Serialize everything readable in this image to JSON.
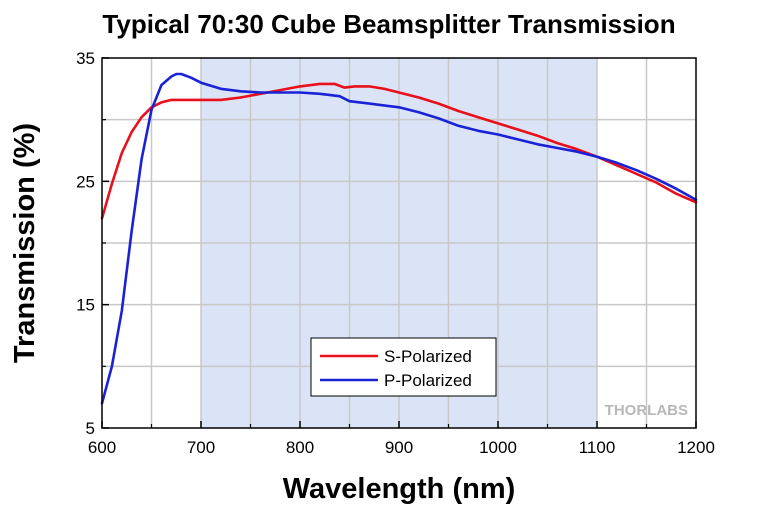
{
  "chart_data": {
    "type": "line",
    "title": "Typical 70:30 Cube Beamsplitter Transmission",
    "xlabel": "Wavelength (nm)",
    "ylabel": "Transmission (%)",
    "xlim": [
      600,
      1200
    ],
    "ylim": [
      5,
      35
    ],
    "xticks": [
      600,
      700,
      800,
      900,
      1000,
      1100,
      1200
    ],
    "yticks": [
      5,
      15,
      25,
      35
    ],
    "grid": true,
    "shaded_region": {
      "x_start": 700,
      "x_end": 1100,
      "color": "#dbe4f6"
    },
    "legend_position": "lower-center",
    "watermark": "THORLABS",
    "series": [
      {
        "name": "S-Polarized",
        "color": "#e8101a",
        "x": [
          600,
          610,
          620,
          630,
          640,
          650,
          660,
          670,
          680,
          700,
          720,
          740,
          760,
          780,
          800,
          820,
          835,
          845,
          855,
          870,
          885,
          900,
          920,
          940,
          960,
          980,
          1000,
          1020,
          1040,
          1060,
          1080,
          1100,
          1120,
          1140,
          1160,
          1180,
          1200
        ],
        "y": [
          22.0,
          24.8,
          27.3,
          29.0,
          30.2,
          31.0,
          31.4,
          31.6,
          31.6,
          31.6,
          31.6,
          31.8,
          32.1,
          32.4,
          32.7,
          32.9,
          32.9,
          32.6,
          32.7,
          32.7,
          32.5,
          32.2,
          31.8,
          31.3,
          30.7,
          30.2,
          29.7,
          29.2,
          28.7,
          28.1,
          27.6,
          27.0,
          26.3,
          25.6,
          24.9,
          24.0,
          23.3
        ]
      },
      {
        "name": "P-Polarized",
        "color": "#1a22d6",
        "x": [
          600,
          610,
          620,
          630,
          640,
          650,
          660,
          670,
          675,
          680,
          690,
          700,
          720,
          740,
          760,
          780,
          800,
          820,
          840,
          850,
          870,
          900,
          920,
          940,
          960,
          980,
          1000,
          1020,
          1040,
          1060,
          1080,
          1100,
          1120,
          1140,
          1160,
          1180,
          1200
        ],
        "y": [
          7.0,
          10.0,
          14.5,
          21.0,
          26.8,
          30.8,
          32.8,
          33.5,
          33.7,
          33.7,
          33.4,
          33.0,
          32.5,
          32.3,
          32.2,
          32.2,
          32.2,
          32.1,
          31.9,
          31.5,
          31.3,
          31.0,
          30.6,
          30.1,
          29.5,
          29.1,
          28.8,
          28.4,
          28.0,
          27.7,
          27.4,
          27.0,
          26.5,
          25.9,
          25.2,
          24.4,
          23.5
        ]
      }
    ]
  }
}
